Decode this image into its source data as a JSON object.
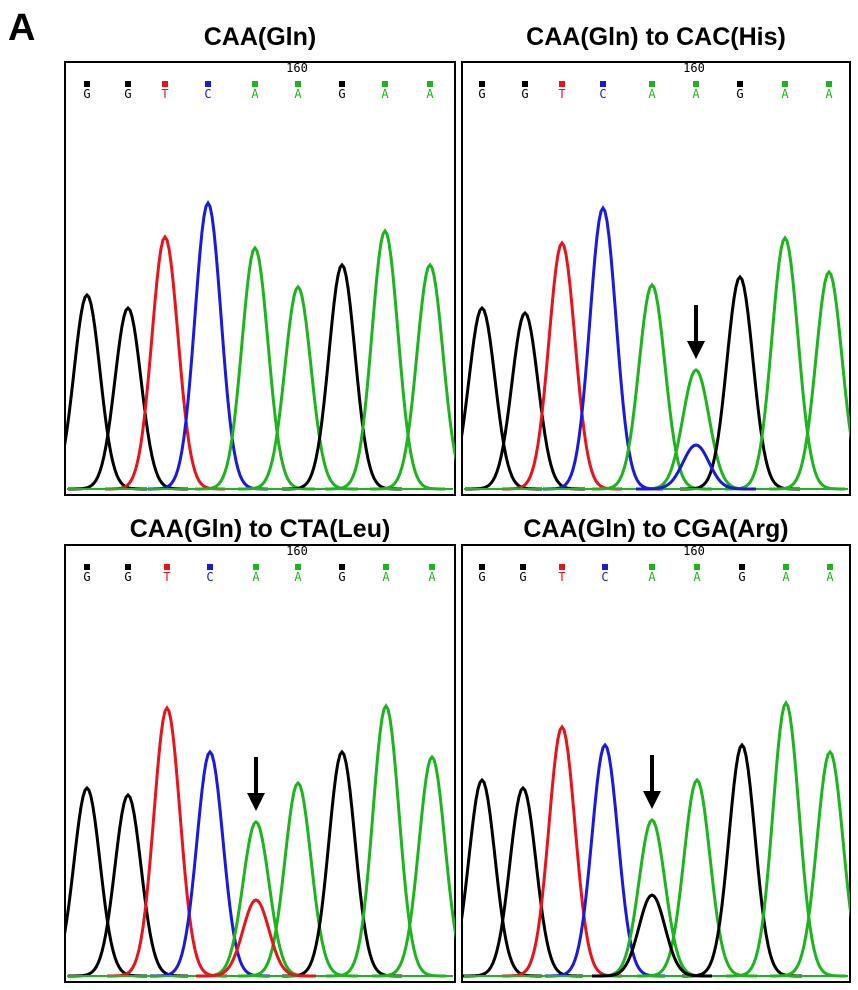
{
  "figure_label": "A",
  "panels": [
    {
      "title": "CAA(Gln)",
      "position": "160",
      "bases": [
        "G",
        "G",
        "T",
        "C",
        "A",
        "A",
        "G",
        "A",
        "A"
      ]
    },
    {
      "title": "CAA(Gln) to CAC(His)",
      "position": "160",
      "bases": [
        "G",
        "G",
        "T",
        "C",
        "A",
        "A",
        "G",
        "A",
        "A"
      ]
    },
    {
      "title": "CAA(Gln) to CTA(Leu)",
      "position": "160",
      "bases": [
        "G",
        "G",
        "T",
        "C",
        "A",
        "A",
        "G",
        "A",
        "A"
      ]
    },
    {
      "title": "CAA(Gln) to CGA(Arg)",
      "position": "160",
      "bases": [
        "G",
        "G",
        "T",
        "C",
        "A",
        "A",
        "G",
        "A",
        "A"
      ]
    }
  ]
}
